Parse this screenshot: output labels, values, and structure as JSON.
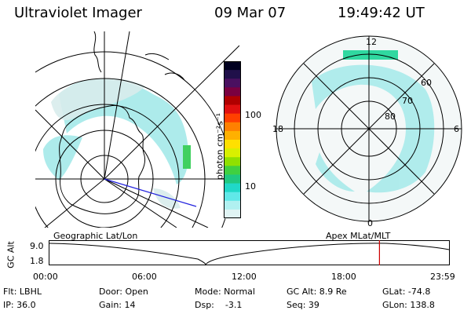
{
  "header": {
    "instrument": "Ultraviolet Imager",
    "date": "09 Mar 07",
    "time": "19:49:42 UT"
  },
  "colorbar": {
    "unit_label": "photon cm⁻²s⁻¹",
    "ticks": [
      "100",
      "10"
    ],
    "colors": [
      "#000020",
      "#20104a",
      "#4a1060",
      "#7a0040",
      "#b00000",
      "#e01010",
      "#ff4000",
      "#ff8000",
      "#ffb000",
      "#ffe000",
      "#d8f000",
      "#90e000",
      "#40d040",
      "#20c880",
      "#20d8c8",
      "#60e8e8",
      "#b0f0f0",
      "#e0f4f4"
    ]
  },
  "polar_plot": {
    "labels": {
      "top": "12",
      "left": "18",
      "right": "6",
      "bottom": "0"
    },
    "rings": [
      "60",
      "70",
      "80"
    ]
  },
  "timeline": {
    "left_title": "Geographic Lat/Lon",
    "right_title": "Apex MLat/MLT",
    "ylabel": "GC Alt",
    "yticks": [
      "9.0",
      "1.8"
    ],
    "xticks": [
      "00:00",
      "06:00",
      "12:00",
      "18:00",
      "23:59"
    ],
    "marker_color": "#cc0000",
    "marker_time_hours": 19.83
  },
  "info": {
    "filter": "Flt: LBHL",
    "ip": "IP: 36.0",
    "door": "Door: Open",
    "gain": "Gain: 14",
    "mode": "Mode: Normal",
    "dsp": "Dsp:    -3.1",
    "gc_alt": "GC Alt: 8.9 Re",
    "seq": "Seq: 39",
    "glat": "GLat: -74.8",
    "glon": "GLon: 138.8"
  }
}
